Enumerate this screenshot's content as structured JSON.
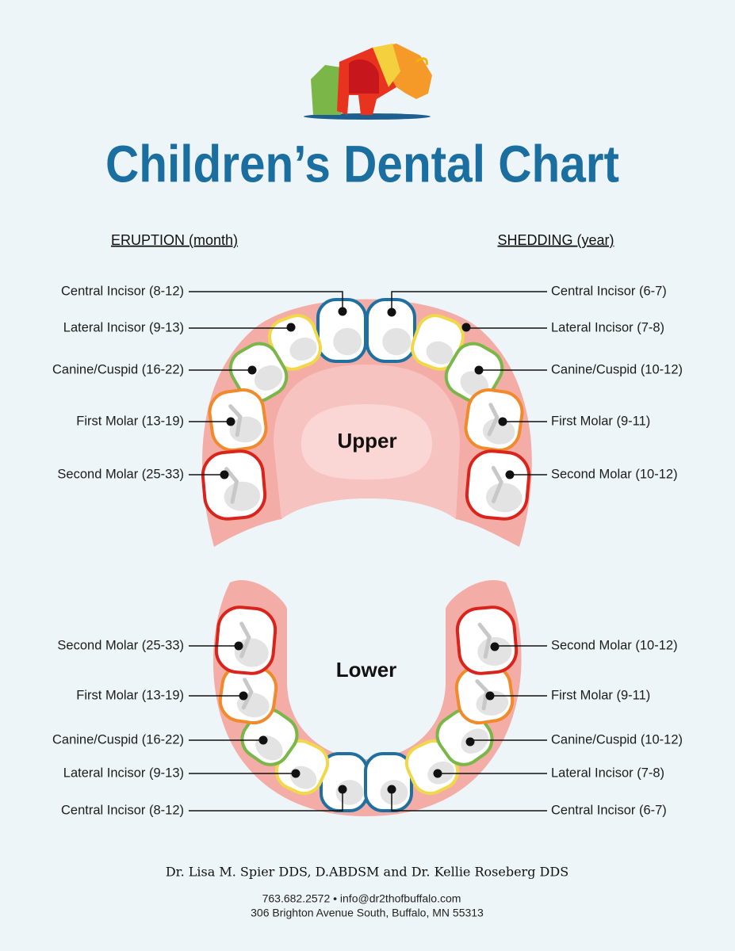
{
  "title": "Children’s Dental Chart",
  "eruption_heading": "ERUPTION (month)",
  "shedding_heading": "SHEDDING (year)",
  "upper": {
    "label": "Upper",
    "eruption": [
      "Central Incisor (8-12)",
      "Lateral Incisor (9-13)",
      "Canine/Cuspid (16-22)",
      "First Molar (13-19)",
      "Second Molar (25-33)"
    ],
    "shedding": [
      "Central Incisor (6-7)",
      "Lateral Incisor (7-8)",
      "Canine/Cuspid (10-12)",
      "First Molar (9-11)",
      "Second Molar (10-12)"
    ]
  },
  "lower": {
    "label": "Lower",
    "eruption": [
      "Central Incisor (8-12)",
      "Lateral Incisor (9-13)",
      "Canine/Cuspid (16-22)",
      "First Molar (13-19)",
      "Second Molar (25-33)"
    ],
    "shedding": [
      "Central Incisor (6-7)",
      "Lateral Incisor (7-8)",
      "Canine/Cuspid (10-12)",
      "First Molar (9-11)",
      "Second Molar (10-12)"
    ]
  },
  "footer": {
    "doctors": "Dr. Lisa M. Spier DDS, D.ABDSM and Dr. Kellie Roseberg DDS",
    "contact": "763.682.2572 • info@dr2thofbuffalo.com",
    "address": "306 Brighton Avenue South, Buffalo, MN 55313"
  }
}
